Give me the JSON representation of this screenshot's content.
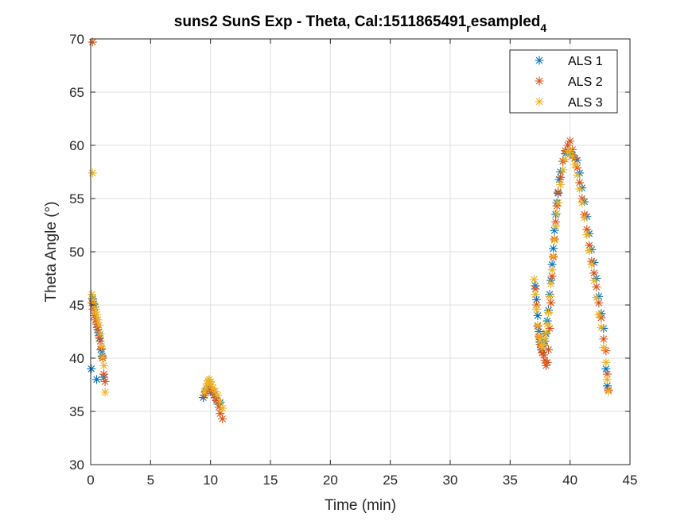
{
  "chart_data": {
    "type": "scatter",
    "title": {
      "main": "suns2 SunS Exp - Theta, Cal:1511865491",
      "subscript_1": "r",
      "middle": "esampled",
      "subscript_2": "4"
    },
    "xlabel": "Time (min)",
    "ylabel": "Theta Angle (°)",
    "xlim": [
      0,
      45
    ],
    "ylim": [
      30,
      70
    ],
    "xticks": [
      0,
      5,
      10,
      15,
      20,
      25,
      30,
      35,
      40,
      45
    ],
    "yticks": [
      30,
      35,
      40,
      45,
      50,
      55,
      60,
      65,
      70
    ],
    "xtick_labels": [
      "0",
      "5",
      "10",
      "15",
      "20",
      "25",
      "30",
      "35",
      "40",
      "45"
    ],
    "ytick_labels": [
      "30",
      "35",
      "40",
      "45",
      "50",
      "55",
      "60",
      "65",
      "70"
    ],
    "grid": true,
    "legend_position": "top-right",
    "series": [
      {
        "name": "ALS 1",
        "color": "#0072BD",
        "points": [
          [
            0.05,
            39.0
          ],
          [
            0.15,
            45.6
          ],
          [
            0.25,
            45.1
          ],
          [
            0.35,
            44.8
          ],
          [
            0.45,
            43.6
          ],
          [
            0.5,
            38.0
          ],
          [
            0.55,
            42.9
          ],
          [
            0.65,
            42.4
          ],
          [
            0.75,
            41.9
          ],
          [
            0.85,
            40.8
          ],
          [
            0.95,
            40.2
          ],
          [
            1.1,
            38.2
          ],
          [
            9.4,
            36.3
          ],
          [
            9.6,
            36.9
          ],
          [
            9.8,
            37.3
          ],
          [
            10.0,
            37.0
          ],
          [
            10.2,
            36.8
          ],
          [
            10.4,
            36.3
          ],
          [
            10.6,
            35.9
          ],
          [
            10.8,
            35.8
          ],
          [
            37.1,
            46.8
          ],
          [
            37.2,
            45.5
          ],
          [
            37.3,
            44.0
          ],
          [
            37.4,
            42.5
          ],
          [
            37.5,
            41.5
          ],
          [
            37.6,
            41.0
          ],
          [
            37.7,
            40.8
          ],
          [
            37.8,
            41.2
          ],
          [
            37.9,
            41.6
          ],
          [
            38.0,
            42.3
          ],
          [
            38.1,
            43.5
          ],
          [
            38.2,
            44.5
          ],
          [
            38.3,
            46.0
          ],
          [
            38.4,
            47.3
          ],
          [
            38.5,
            48.8
          ],
          [
            38.6,
            50.3
          ],
          [
            38.7,
            52.0
          ],
          [
            38.8,
            53.5
          ],
          [
            38.9,
            54.6
          ],
          [
            39.0,
            55.5
          ],
          [
            39.1,
            56.8
          ],
          [
            39.2,
            57.5
          ],
          [
            39.4,
            58.5
          ],
          [
            39.6,
            59.2
          ],
          [
            39.8,
            59.5
          ],
          [
            40.0,
            59.4
          ],
          [
            40.2,
            59.1
          ],
          [
            40.4,
            58.8
          ],
          [
            40.6,
            58.6
          ],
          [
            40.8,
            57.4
          ],
          [
            41.0,
            56.0
          ],
          [
            41.2,
            54.7
          ],
          [
            41.4,
            53.3
          ],
          [
            41.6,
            51.7
          ],
          [
            41.8,
            50.2
          ],
          [
            42.0,
            49.0
          ],
          [
            42.2,
            47.5
          ],
          [
            42.4,
            45.8
          ],
          [
            42.6,
            44.2
          ],
          [
            42.8,
            42.8
          ],
          [
            43.0,
            39.0
          ],
          [
            43.1,
            37.4
          ]
        ]
      },
      {
        "name": "ALS 2",
        "color": "#D95319",
        "points": [
          [
            0.15,
            69.7
          ],
          [
            0.1,
            45.2
          ],
          [
            0.2,
            44.6
          ],
          [
            0.3,
            44.0
          ],
          [
            0.4,
            43.6
          ],
          [
            0.5,
            43.2
          ],
          [
            0.6,
            42.7
          ],
          [
            0.7,
            42.1
          ],
          [
            0.8,
            41.6
          ],
          [
            0.9,
            40.9
          ],
          [
            1.0,
            40.0
          ],
          [
            1.1,
            38.5
          ],
          [
            1.2,
            37.8
          ],
          [
            9.5,
            36.5
          ],
          [
            9.7,
            37.0
          ],
          [
            9.9,
            37.2
          ],
          [
            10.1,
            36.9
          ],
          [
            10.3,
            36.5
          ],
          [
            10.5,
            36.0
          ],
          [
            10.7,
            35.4
          ],
          [
            10.8,
            34.8
          ],
          [
            11.0,
            34.3
          ],
          [
            37.1,
            46.5
          ],
          [
            37.2,
            45.0
          ],
          [
            37.3,
            43.0
          ],
          [
            37.4,
            42.0
          ],
          [
            37.5,
            41.3
          ],
          [
            37.6,
            40.8
          ],
          [
            37.7,
            40.5
          ],
          [
            37.8,
            40.3
          ],
          [
            37.9,
            39.8
          ],
          [
            38.0,
            39.3
          ],
          [
            38.1,
            39.6
          ],
          [
            38.2,
            40.8
          ],
          [
            38.3,
            42.8
          ],
          [
            38.4,
            45.2
          ],
          [
            38.5,
            47.7
          ],
          [
            38.6,
            49.5
          ],
          [
            38.7,
            51.2
          ],
          [
            38.8,
            52.8
          ],
          [
            38.9,
            54.3
          ],
          [
            39.0,
            55.6
          ],
          [
            39.2,
            57.0
          ],
          [
            39.4,
            58.5
          ],
          [
            39.6,
            59.5
          ],
          [
            39.8,
            60.0
          ],
          [
            40.0,
            60.4
          ],
          [
            40.2,
            59.6
          ],
          [
            40.4,
            58.8
          ],
          [
            40.6,
            57.9
          ],
          [
            40.8,
            56.5
          ],
          [
            41.0,
            55.0
          ],
          [
            41.2,
            53.5
          ],
          [
            41.4,
            52.1
          ],
          [
            41.6,
            50.6
          ],
          [
            41.8,
            49.1
          ],
          [
            42.0,
            48.0
          ],
          [
            42.2,
            46.7
          ],
          [
            42.4,
            45.2
          ],
          [
            42.6,
            43.8
          ],
          [
            42.8,
            41.8
          ],
          [
            43.0,
            40.7
          ],
          [
            43.1,
            38.5
          ],
          [
            43.2,
            37.0
          ]
        ]
      },
      {
        "name": "ALS 3",
        "color": "#EDB120",
        "points": [
          [
            0.15,
            57.4
          ],
          [
            0.1,
            46.0
          ],
          [
            0.2,
            45.5
          ],
          [
            0.3,
            45.0
          ],
          [
            0.4,
            44.6
          ],
          [
            0.5,
            44.1
          ],
          [
            0.6,
            43.6
          ],
          [
            0.7,
            43.1
          ],
          [
            0.8,
            42.3
          ],
          [
            0.9,
            41.1
          ],
          [
            1.0,
            40.1
          ],
          [
            1.1,
            39.3
          ],
          [
            1.2,
            36.8
          ],
          [
            9.5,
            36.8
          ],
          [
            9.6,
            37.2
          ],
          [
            9.7,
            37.6
          ],
          [
            9.8,
            37.9
          ],
          [
            9.9,
            38.0
          ],
          [
            10.0,
            37.8
          ],
          [
            10.1,
            37.5
          ],
          [
            10.2,
            37.2
          ],
          [
            10.4,
            36.9
          ],
          [
            10.6,
            36.5
          ],
          [
            10.8,
            35.9
          ],
          [
            11.0,
            35.3
          ],
          [
            37.0,
            47.4
          ],
          [
            37.1,
            46.0
          ],
          [
            37.2,
            44.6
          ],
          [
            37.3,
            43.1
          ],
          [
            37.4,
            42.1
          ],
          [
            37.5,
            41.6
          ],
          [
            37.6,
            41.2
          ],
          [
            37.7,
            41.0
          ],
          [
            37.8,
            41.3
          ],
          [
            37.9,
            41.8
          ],
          [
            38.0,
            42.4
          ],
          [
            38.1,
            43.2
          ],
          [
            38.2,
            44.3
          ],
          [
            38.3,
            45.8
          ],
          [
            38.4,
            47.0
          ],
          [
            38.5,
            48.3
          ],
          [
            38.6,
            49.6
          ],
          [
            38.7,
            51.1
          ],
          [
            38.8,
            52.4
          ],
          [
            38.9,
            53.6
          ],
          [
            39.0,
            54.6
          ],
          [
            39.2,
            56.3
          ],
          [
            39.4,
            57.7
          ],
          [
            39.6,
            58.7
          ],
          [
            39.8,
            59.3
          ],
          [
            40.0,
            59.5
          ],
          [
            40.2,
            59.0
          ],
          [
            40.4,
            58.2
          ],
          [
            40.6,
            57.2
          ],
          [
            40.8,
            55.9
          ],
          [
            41.0,
            54.6
          ],
          [
            41.2,
            53.2
          ],
          [
            41.4,
            51.6
          ],
          [
            41.6,
            50.1
          ],
          [
            41.8,
            48.8
          ],
          [
            42.0,
            47.3
          ],
          [
            42.2,
            45.7
          ],
          [
            42.4,
            44.1
          ],
          [
            42.6,
            42.9
          ],
          [
            42.8,
            41.0
          ],
          [
            43.0,
            39.6
          ],
          [
            43.1,
            38.0
          ],
          [
            43.2,
            36.9
          ]
        ]
      }
    ]
  }
}
